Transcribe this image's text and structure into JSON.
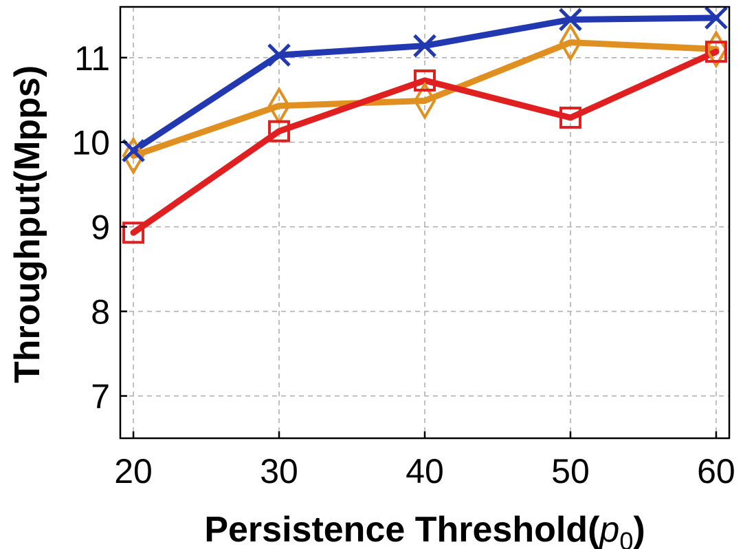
{
  "chart_data": {
    "type": "line",
    "x": [
      20,
      30,
      40,
      50,
      60
    ],
    "xlabel": "Persistence Threshold(",
    "xlabel_symbol": "p",
    "xlabel_subscript": "0",
    "xlabel_close": ")",
    "ylabel": "Throughput(Mpps)",
    "xlim": [
      19.1,
      60.9
    ],
    "ylim": [
      6.5,
      11.6
    ],
    "xticks": [
      20,
      30,
      40,
      50,
      60
    ],
    "yticks": [
      7,
      8,
      9,
      10,
      11
    ],
    "grid": true,
    "legend": "none",
    "series": [
      {
        "marker": "x",
        "color": "#2138b0",
        "values": [
          9.9,
          11.03,
          11.14,
          11.45,
          11.47
        ]
      },
      {
        "marker": "diamond",
        "color": "#e09020",
        "values": [
          9.84,
          10.43,
          10.49,
          11.18,
          11.1
        ]
      },
      {
        "marker": "square",
        "color": "#e02020",
        "values": [
          8.93,
          10.13,
          10.73,
          10.29,
          11.07
        ]
      }
    ]
  }
}
